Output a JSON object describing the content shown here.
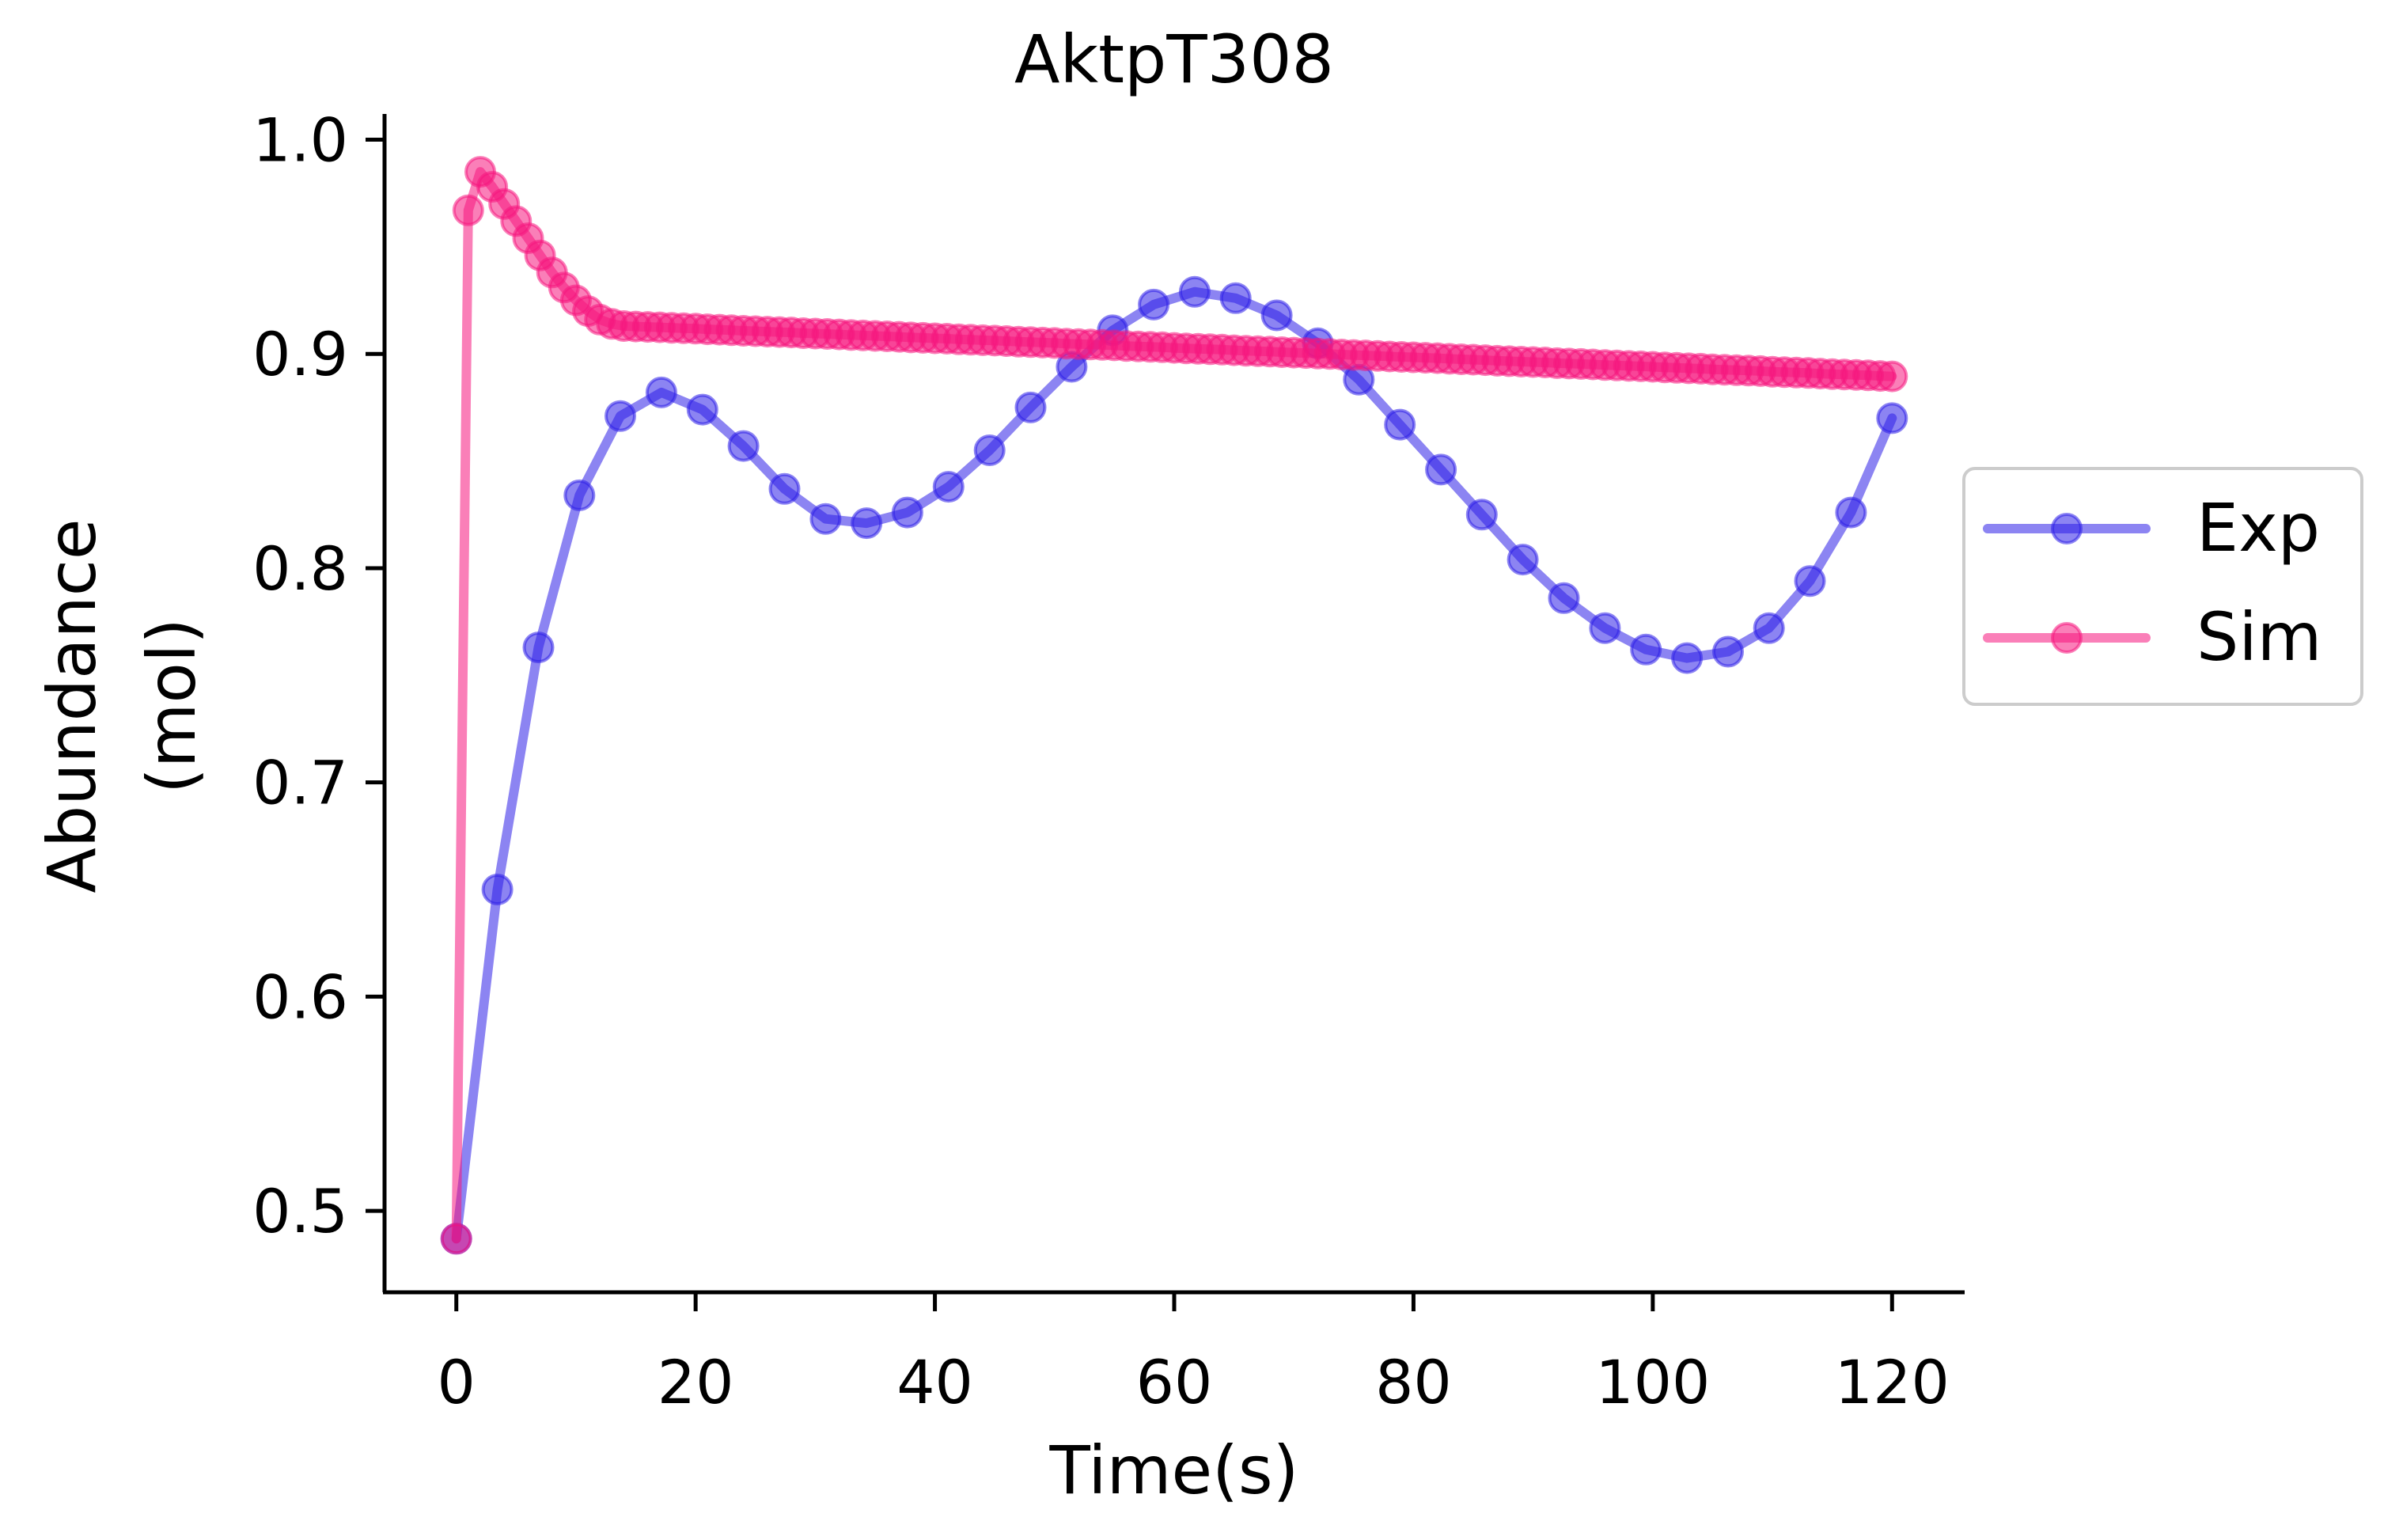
{
  "chart_data": {
    "type": "line",
    "title": "AktpT308",
    "xlabel": "Time(s)",
    "ylabel_lines": [
      "Abundance",
      "(mol)"
    ],
    "xlim": [
      -6,
      126
    ],
    "ylim": [
      0.462,
      1.012
    ],
    "xticks": [
      0,
      20,
      40,
      60,
      80,
      100,
      120
    ],
    "xtick_labels": [
      "0",
      "20",
      "40",
      "60",
      "80",
      "100",
      "120"
    ],
    "yticks": [
      0.5,
      0.6,
      0.7,
      0.8,
      0.9,
      1.0
    ],
    "ytick_labels": [
      "0.5",
      "0.6",
      "0.7",
      "0.8",
      "0.9",
      "1.0"
    ],
    "grid": false,
    "legend_position": "right",
    "series": [
      {
        "name": "Exp",
        "color": "#2e1fe8",
        "x": [
          0,
          3.43,
          6.86,
          10.29,
          13.71,
          17.14,
          20.57,
          24,
          27.43,
          30.86,
          34.29,
          37.71,
          41.14,
          44.57,
          48,
          51.43,
          54.86,
          58.29,
          61.71,
          65.14,
          68.57,
          72,
          75.43,
          78.86,
          82.29,
          85.71,
          89.14,
          92.57,
          96,
          99.43,
          102.86,
          106.29,
          109.71,
          113.14,
          116.57,
          120
        ],
        "y": [
          0.487,
          0.65,
          0.763,
          0.834,
          0.871,
          0.882,
          0.874,
          0.857,
          0.837,
          0.823,
          0.821,
          0.826,
          0.838,
          0.855,
          0.875,
          0.894,
          0.911,
          0.923,
          0.929,
          0.926,
          0.918,
          0.905,
          0.888,
          0.867,
          0.846,
          0.825,
          0.804,
          0.786,
          0.772,
          0.762,
          0.758,
          0.761,
          0.772,
          0.794,
          0.826,
          0.87
        ]
      },
      {
        "name": "Sim",
        "color": "#f5167e",
        "x": [
          0,
          1,
          2,
          3,
          4,
          5,
          6,
          7,
          8,
          9,
          10,
          11,
          12,
          13,
          14,
          15,
          16,
          17,
          18,
          19,
          20,
          21,
          22,
          23,
          24,
          25,
          26,
          27,
          28,
          29,
          30,
          31,
          32,
          33,
          34,
          35,
          36,
          37,
          38,
          39,
          40,
          41,
          42,
          43,
          44,
          45,
          46,
          47,
          48,
          49,
          50,
          51,
          52,
          53,
          54,
          55,
          56,
          57,
          58,
          59,
          60,
          61,
          62,
          63,
          64,
          65,
          66,
          67,
          68,
          69,
          70,
          71,
          72,
          73,
          74,
          75,
          76,
          77,
          78,
          79,
          80,
          81,
          82,
          83,
          84,
          85,
          86,
          87,
          88,
          89,
          90,
          91,
          92,
          93,
          94,
          95,
          96,
          97,
          98,
          99,
          100,
          101,
          102,
          103,
          104,
          105,
          106,
          107,
          108,
          109,
          110,
          111,
          112,
          113,
          114,
          115,
          116,
          117,
          118,
          119,
          120
        ],
        "y": [
          0.487,
          0.967,
          0.985,
          0.978,
          0.97,
          0.962,
          0.954,
          0.946,
          0.938,
          0.931,
          0.925,
          0.92,
          0.916,
          0.914,
          0.913,
          0.9128,
          0.9126,
          0.9124,
          0.9122,
          0.912,
          0.9118,
          0.9115,
          0.9113,
          0.9111,
          0.9108,
          0.9106,
          0.9104,
          0.9102,
          0.91,
          0.9097,
          0.9095,
          0.9093,
          0.9091,
          0.9088,
          0.9086,
          0.9084,
          0.9082,
          0.908,
          0.9077,
          0.9075,
          0.9073,
          0.9071,
          0.9068,
          0.9066,
          0.9064,
          0.9062,
          0.906,
          0.9057,
          0.9055,
          0.9053,
          0.9051,
          0.9048,
          0.9046,
          0.9044,
          0.9042,
          0.904,
          0.9037,
          0.9035,
          0.9033,
          0.9031,
          0.9028,
          0.9026,
          0.9024,
          0.9022,
          0.902,
          0.9017,
          0.9015,
          0.9013,
          0.9011,
          0.9008,
          0.9006,
          0.9004,
          0.9002,
          0.9,
          0.8997,
          0.8995,
          0.8993,
          0.8991,
          0.8988,
          0.8986,
          0.8984,
          0.8982,
          0.898,
          0.8977,
          0.8975,
          0.8973,
          0.8971,
          0.8968,
          0.8966,
          0.8964,
          0.8962,
          0.896,
          0.8957,
          0.8955,
          0.8953,
          0.8951,
          0.8948,
          0.8946,
          0.8944,
          0.8942,
          0.894,
          0.8937,
          0.8935,
          0.8933,
          0.8931,
          0.8928,
          0.8926,
          0.8924,
          0.8922,
          0.892,
          0.8917,
          0.8915,
          0.8913,
          0.8911,
          0.8908,
          0.8906,
          0.8904,
          0.8902,
          0.89,
          0.8897,
          0.8895
        ]
      }
    ]
  }
}
